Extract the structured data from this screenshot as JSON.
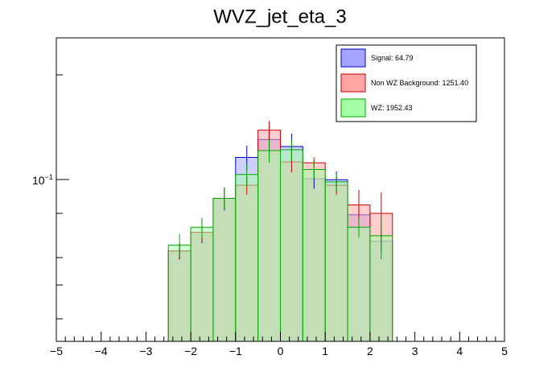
{
  "chart_data": {
    "type": "bar",
    "title": "WVZ_jet_eta_3",
    "xlabel": "",
    "ylabel": "",
    "yscale": "log",
    "xlim": [
      -5,
      5
    ],
    "ylim": [
      0.0245,
      0.37
    ],
    "x_ticks": [
      -5,
      -4,
      -3,
      -2,
      -1,
      0,
      1,
      2,
      3,
      4,
      5
    ],
    "x_tick_labels": [
      "−5",
      "−4",
      "−3",
      "−2",
      "−1",
      "0",
      "1",
      "2",
      "3",
      "4",
      "5"
    ],
    "y_tick_label": {
      "base": "10",
      "exponent": "−1",
      "value": 0.1
    },
    "bin_edges": [
      -2.5,
      -2.0,
      -1.5,
      -1.0,
      -0.5,
      0.0,
      0.5,
      1.0,
      1.5,
      2.0,
      2.5
    ],
    "legend_position": "top-right",
    "series": [
      {
        "name": "Signal: 64.79",
        "fill": "#a5a5ff",
        "edge": "#0000cc",
        "values": [
          0.055,
          0.065,
          0.088,
          0.127,
          0.149,
          0.14,
          0.105,
          0.104,
          0.076,
          0.06
        ],
        "errors": [
          0.004,
          0.006,
          0.009,
          0.014,
          0.019,
          0.017,
          0.009,
          0.008,
          0.006,
          0.005
        ]
      },
      {
        "name": "Non WZ Background: 1251.40",
        "fill": "#ffa5a5",
        "edge": "#cc0000",
        "values": [
          0.055,
          0.065,
          0.088,
          0.099,
          0.162,
          0.122,
          0.121,
          0.099,
          0.083,
          0.077
        ],
        "errors": [
          0.004,
          0.005,
          0.008,
          0.008,
          0.014,
          0.011,
          0.006,
          0.008,
          0.012,
          0.016
        ]
      },
      {
        "name": "WZ: 1952.43",
        "fill": "#a5ffa5",
        "edge": "#00aa00",
        "values": [
          0.058,
          0.068,
          0.088,
          0.109,
          0.135,
          0.136,
          0.114,
          0.102,
          0.068,
          0.063
        ],
        "errors": [
          0.006,
          0.006,
          0.008,
          0.011,
          0.014,
          0.013,
          0.009,
          0.008,
          0.006,
          0.012
        ]
      }
    ]
  }
}
